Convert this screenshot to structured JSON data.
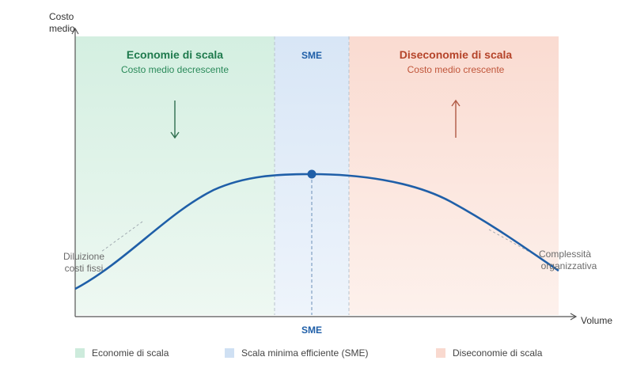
{
  "axes": {
    "y_label_line1": "Costo",
    "y_label_line2": "medio",
    "x_label": "Volume"
  },
  "zones": {
    "economies": {
      "title": "Economie di scala",
      "subtitle": "Costo medio decrescente",
      "color": "#d9f0e4",
      "text_color": "#1f7a4d"
    },
    "sme": {
      "title": "SME",
      "color": "#dbe8f6",
      "text_color": "#1f5fa8"
    },
    "diseconomies": {
      "title": "Diseconomie di scala",
      "subtitle": "Costo medio crescente",
      "color": "#fbe2da",
      "text_color": "#b5442a"
    }
  },
  "annotations": {
    "left_line1": "Diluizione",
    "left_line2": "costi fissi",
    "right_line1": "Complessità",
    "right_line2": "organizzativa",
    "axis_marker": "SME"
  },
  "legend": [
    {
      "label": "Economie di scala",
      "color": "#cdebdc"
    },
    {
      "label": "Scala minima efficiente (SME)",
      "color": "#cfe0f3"
    },
    {
      "label": "Diseconomie di scala",
      "color": "#f9d9cf"
    }
  ],
  "curve": {
    "color": "#1f5fa8",
    "arrow_down_color": "#2f6e4e",
    "arrow_up_color": "#b05a45"
  }
}
